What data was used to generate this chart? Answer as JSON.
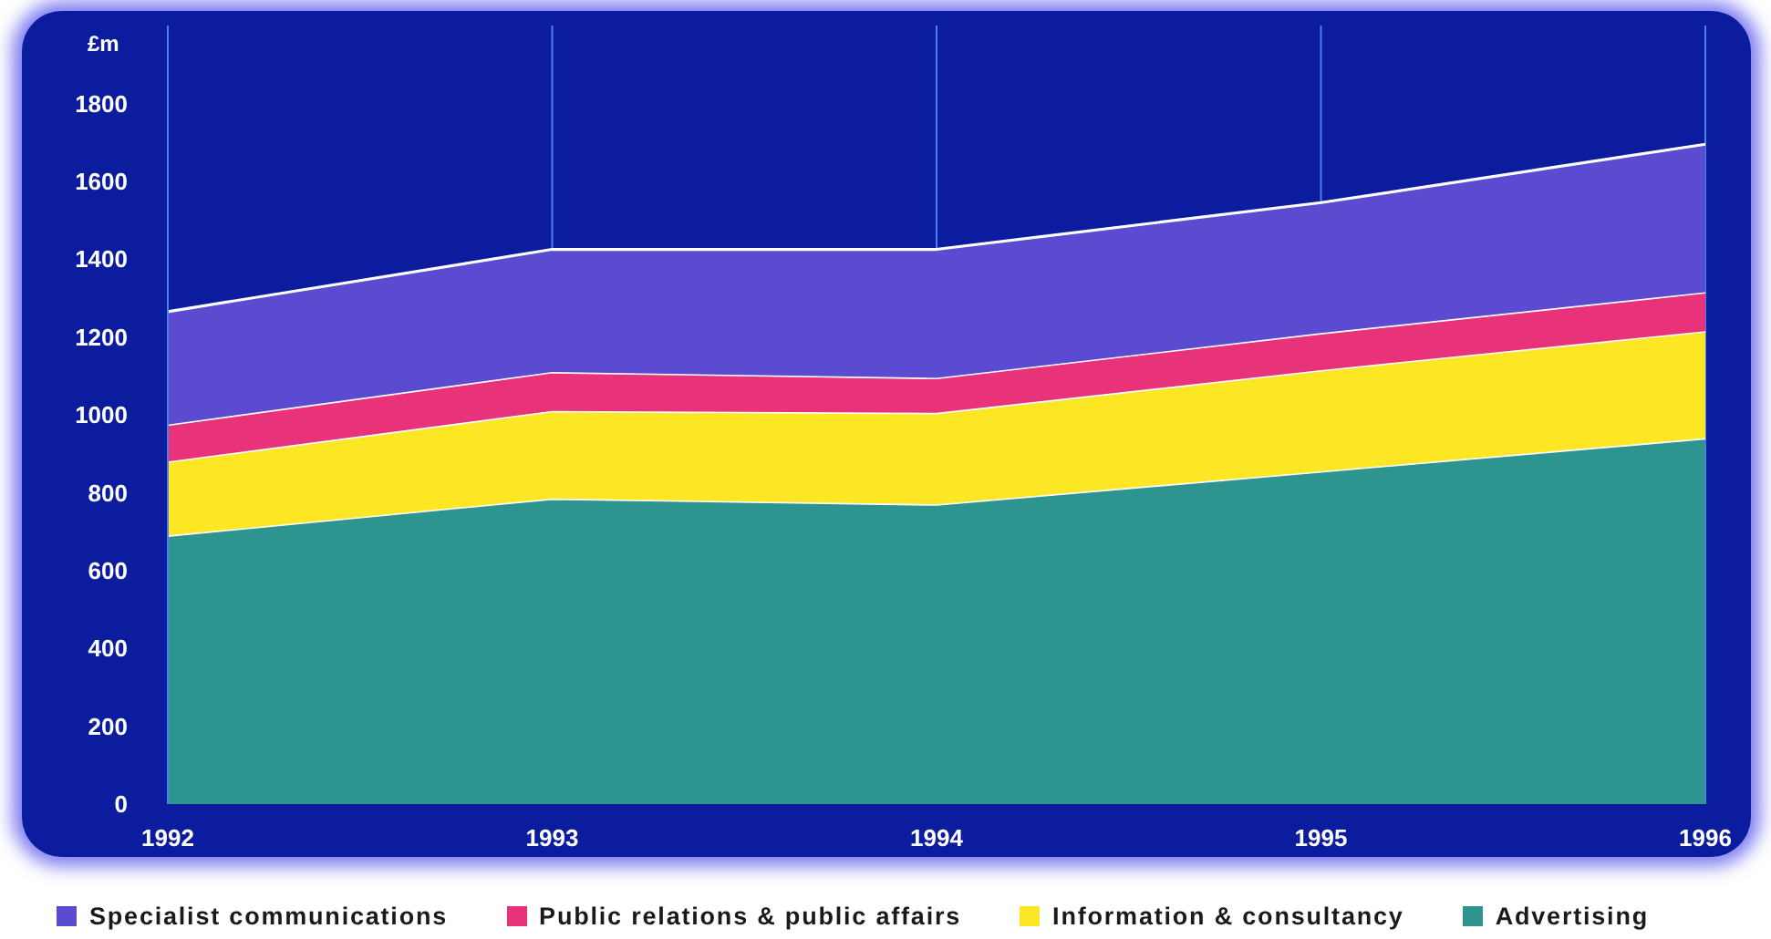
{
  "chart_data": {
    "type": "area",
    "stacked": true,
    "ylabel": "£m",
    "categories": [
      "1992",
      "1993",
      "1994",
      "1995",
      "1996"
    ],
    "series": [
      {
        "name": "Advertising",
        "color": "#2e9490",
        "values": [
          690,
          785,
          770,
          855,
          940
        ]
      },
      {
        "name": "Information & consultancy",
        "color": "#fde725",
        "values": [
          190,
          225,
          235,
          260,
          275
        ]
      },
      {
        "name": "Public relations & public affairs",
        "color": "#e8327a",
        "values": [
          95,
          100,
          90,
          95,
          100
        ]
      },
      {
        "name": "Specialist communications",
        "color": "#5a4bd0",
        "values": [
          290,
          315,
          330,
          335,
          380
        ]
      }
    ],
    "ylim": [
      0,
      2000
    ],
    "yticks": [
      0,
      200,
      400,
      600,
      800,
      1000,
      1200,
      1400,
      1600,
      1800
    ],
    "grid": "x",
    "legend": "bottom"
  }
}
